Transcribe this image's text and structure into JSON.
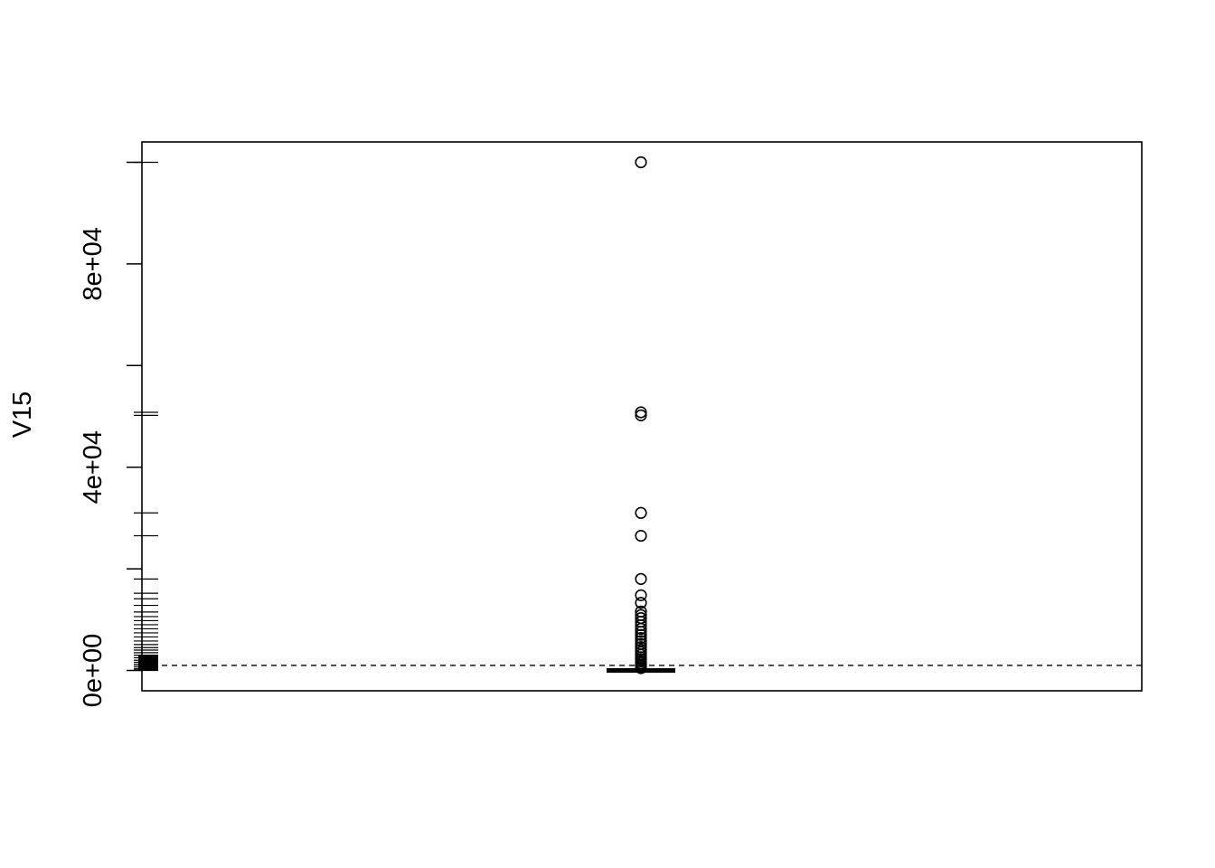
{
  "chart_data": {
    "type": "boxplot",
    "title": "",
    "xlabel": "",
    "ylabel": "V15",
    "ylim": [
      -4000,
      104000
    ],
    "y_ticks": [
      0,
      20000,
      40000,
      60000,
      80000,
      100000
    ],
    "y_tick_labels": [
      {
        "value": 0,
        "label": "0e+00"
      },
      {
        "value": 40000,
        "label": "4e+04"
      },
      {
        "value": 80000,
        "label": "8e+04"
      }
    ],
    "box": {
      "q1": 0,
      "median": 0,
      "q3": 0,
      "whisker_low": 0,
      "whisker_high": 200
    },
    "outliers": [
      100000,
      50800,
      50200,
      31000,
      26500,
      18000,
      14800,
      13300,
      11600,
      10900,
      10300,
      9600,
      8900,
      8200,
      7600,
      7000,
      6400,
      5800,
      5200,
      4600,
      4100,
      3600,
      3100,
      2600,
      2200,
      1800,
      1400,
      1000,
      700,
      450
    ],
    "rug": [
      100000,
      50800,
      50200,
      31000,
      26500,
      18000,
      15200,
      14100,
      12800,
      11500,
      10600,
      9800,
      9000,
      8200,
      7400,
      6600,
      5800,
      5100,
      4500,
      4000,
      3500,
      3000,
      2500,
      2000,
      1600,
      1200,
      800,
      400,
      150
    ],
    "reference_line": {
      "value": 1000,
      "style": "dashed"
    }
  }
}
